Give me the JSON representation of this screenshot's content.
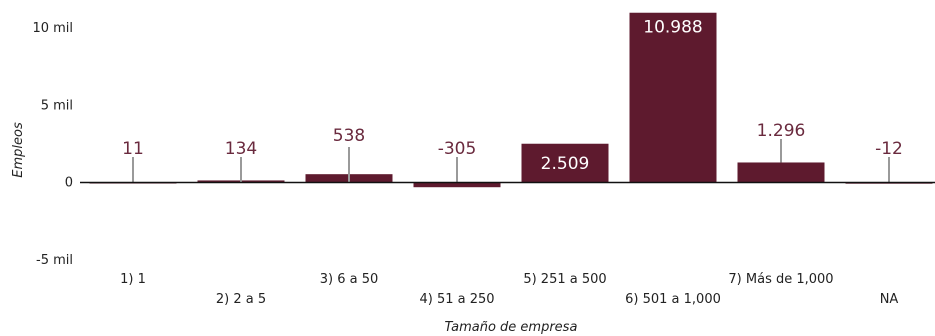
{
  "colors": {
    "bar": "#5e1a2e",
    "label_outside": "#6a2a3e",
    "label_inside": "#ffffff",
    "leader": "#9a9a9a",
    "zero_line": "#111111"
  },
  "chart_data": {
    "type": "bar",
    "xlabel": "Tamaño de empresa",
    "ylabel": "Empleos",
    "ylim": [
      -5000,
      10000
    ],
    "yticks": [
      {
        "value": 10000,
        "label": "10 mil"
      },
      {
        "value": 5000,
        "label": "5 mil"
      },
      {
        "value": 0,
        "label": "0"
      },
      {
        "value": -5000,
        "label": "-5 mil"
      }
    ],
    "grid": false,
    "categories": [
      "1) 1",
      "2) 2 a 5",
      "3) 6 a 50",
      "4) 51 a 250",
      "5) 251 a 500",
      "6) 501 a 1,000",
      "7) Más de 1,000",
      "NA"
    ],
    "values": [
      11,
      134,
      538,
      -305,
      2509,
      10988,
      1296,
      -12
    ],
    "value_labels": [
      "11",
      "134",
      "538",
      "-305",
      "2.509",
      "10.988",
      "1.296",
      "-12"
    ]
  }
}
